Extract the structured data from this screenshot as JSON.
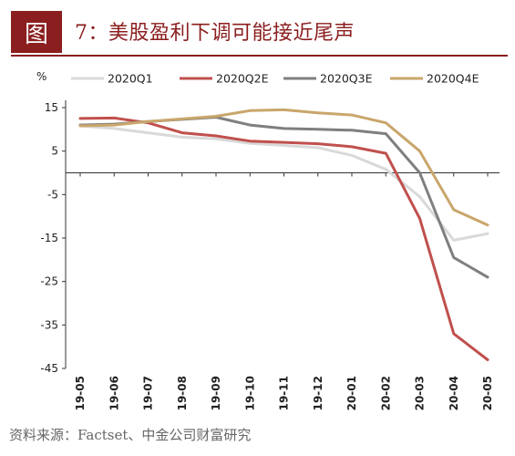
{
  "header": {
    "figure_label": "图",
    "title": "7：美股盈利下调可能接近尾声"
  },
  "source_note": "资料来源：Factset、中金公司财富研究",
  "chart_data": {
    "type": "line",
    "ylabel": "%",
    "ylim": [
      -45,
      15
    ],
    "yticks": [
      15,
      5,
      -5,
      -15,
      -25,
      -35,
      -45
    ],
    "categories": [
      "19-05",
      "19-06",
      "19-07",
      "19-08",
      "19-09",
      "19-10",
      "19-11",
      "19-12",
      "20-01",
      "20-02",
      "20-03",
      "20-04",
      "20-05"
    ],
    "legend_position": "top",
    "series": [
      {
        "name": "2020Q1",
        "color": "#d9d9d9",
        "values": [
          10.8,
          10.2,
          9.2,
          8.2,
          7.8,
          6.8,
          6.3,
          5.8,
          4.0,
          0.8,
          -5.5,
          -15.5,
          -14.0
        ]
      },
      {
        "name": "2020Q2E",
        "color": "#c0504d",
        "values": [
          12.5,
          12.6,
          11.5,
          9.2,
          8.5,
          7.3,
          7.0,
          6.7,
          6.0,
          4.5,
          -10.5,
          -37.0,
          -43.0
        ]
      },
      {
        "name": "2020Q3E",
        "color": "#7f7f7f",
        "values": [
          11.0,
          11.2,
          11.8,
          12.3,
          12.8,
          11.0,
          10.2,
          10.0,
          9.8,
          9.0,
          0.0,
          -19.5,
          -24.0
        ]
      },
      {
        "name": "2020Q4E",
        "color": "#c9a66b",
        "values": [
          10.8,
          11.0,
          11.8,
          12.4,
          13.0,
          14.3,
          14.5,
          13.8,
          13.3,
          11.5,
          5.0,
          -8.5,
          -12.0
        ]
      }
    ]
  }
}
